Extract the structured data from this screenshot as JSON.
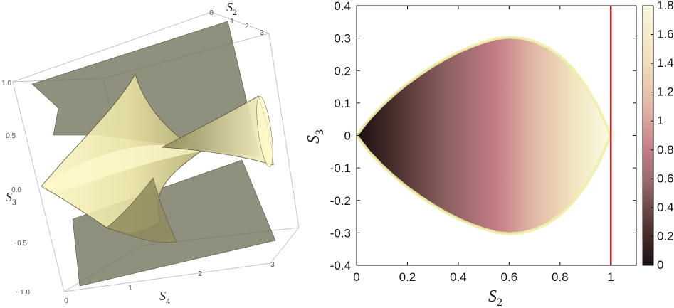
{
  "chart_data": [
    {
      "type": "surface3d",
      "axes": {
        "s2": {
          "label": "S",
          "label_sub": "2",
          "ticks": [
            "0",
            "1",
            "2",
            "3"
          ]
        },
        "s3": {
          "label": "S",
          "label_sub": "3",
          "ticks": [
            "1.0",
            "0.5",
            "0.0",
            "−0.5",
            "−1.0"
          ]
        },
        "s4": {
          "label": "S",
          "label_sub": "4",
          "ticks": [
            "0",
            "1",
            "2",
            "3"
          ]
        }
      },
      "colors": {
        "plane": "#6f7159",
        "cone": "#f4efac",
        "box": "#b8b8b8"
      }
    },
    {
      "type": "heatmap",
      "xlabel": "S",
      "xlabel_sub": "2",
      "ylabel": "S",
      "ylabel_sub": "3",
      "xlim": [
        0,
        1.1
      ],
      "ylim": [
        -0.4,
        0.4
      ],
      "xticks": [
        0,
        0.2,
        0.4,
        0.6,
        0.8,
        1
      ],
      "xtick_labels": [
        "0",
        "0.2",
        "0.4",
        "0.6",
        "0.8",
        "1"
      ],
      "yticks": [
        0.4,
        0.3,
        0.2,
        0.1,
        0,
        -0.1,
        -0.2,
        -0.3,
        -0.4
      ],
      "ytick_labels": [
        "0.4",
        "0.3",
        "0.2",
        "0.1",
        "0",
        "-0.1",
        "-0.2",
        "-0.3",
        "-0.4"
      ],
      "region_boundary": {
        "s2": [
          0,
          0.05,
          0.1,
          0.15,
          0.2,
          0.25,
          0.3,
          0.35,
          0.4,
          0.45,
          0.5,
          0.55,
          0.6,
          0.65,
          0.7,
          0.75,
          0.8,
          0.85,
          0.9,
          0.95,
          1
        ],
        "s3_upper": [
          0,
          0.051,
          0.092,
          0.128,
          0.16,
          0.188,
          0.214,
          0.237,
          0.257,
          0.274,
          0.288,
          0.299,
          0.303,
          0.3,
          0.29,
          0.272,
          0.245,
          0.206,
          0.155,
          0.088,
          0
        ]
      },
      "vertical_line": {
        "x": 1,
        "color": "#d42222"
      },
      "colorbar": {
        "range": [
          0,
          1.8
        ],
        "ticks": [
          1.8,
          1.6,
          1.4,
          1.2,
          1,
          0.8,
          0.6,
          0.4,
          0.2,
          0
        ],
        "tick_labels": [
          "1.8",
          "1.6",
          "1.4",
          "1.2",
          "1",
          "0.8",
          "0.6",
          "0.4",
          "0.2",
          "0"
        ],
        "colors": [
          "#1a0f10",
          "#5a3a36",
          "#9a6a6c",
          "#c57e87",
          "#e0b3a4",
          "#f0deba",
          "#f8f6dc"
        ]
      }
    }
  ]
}
